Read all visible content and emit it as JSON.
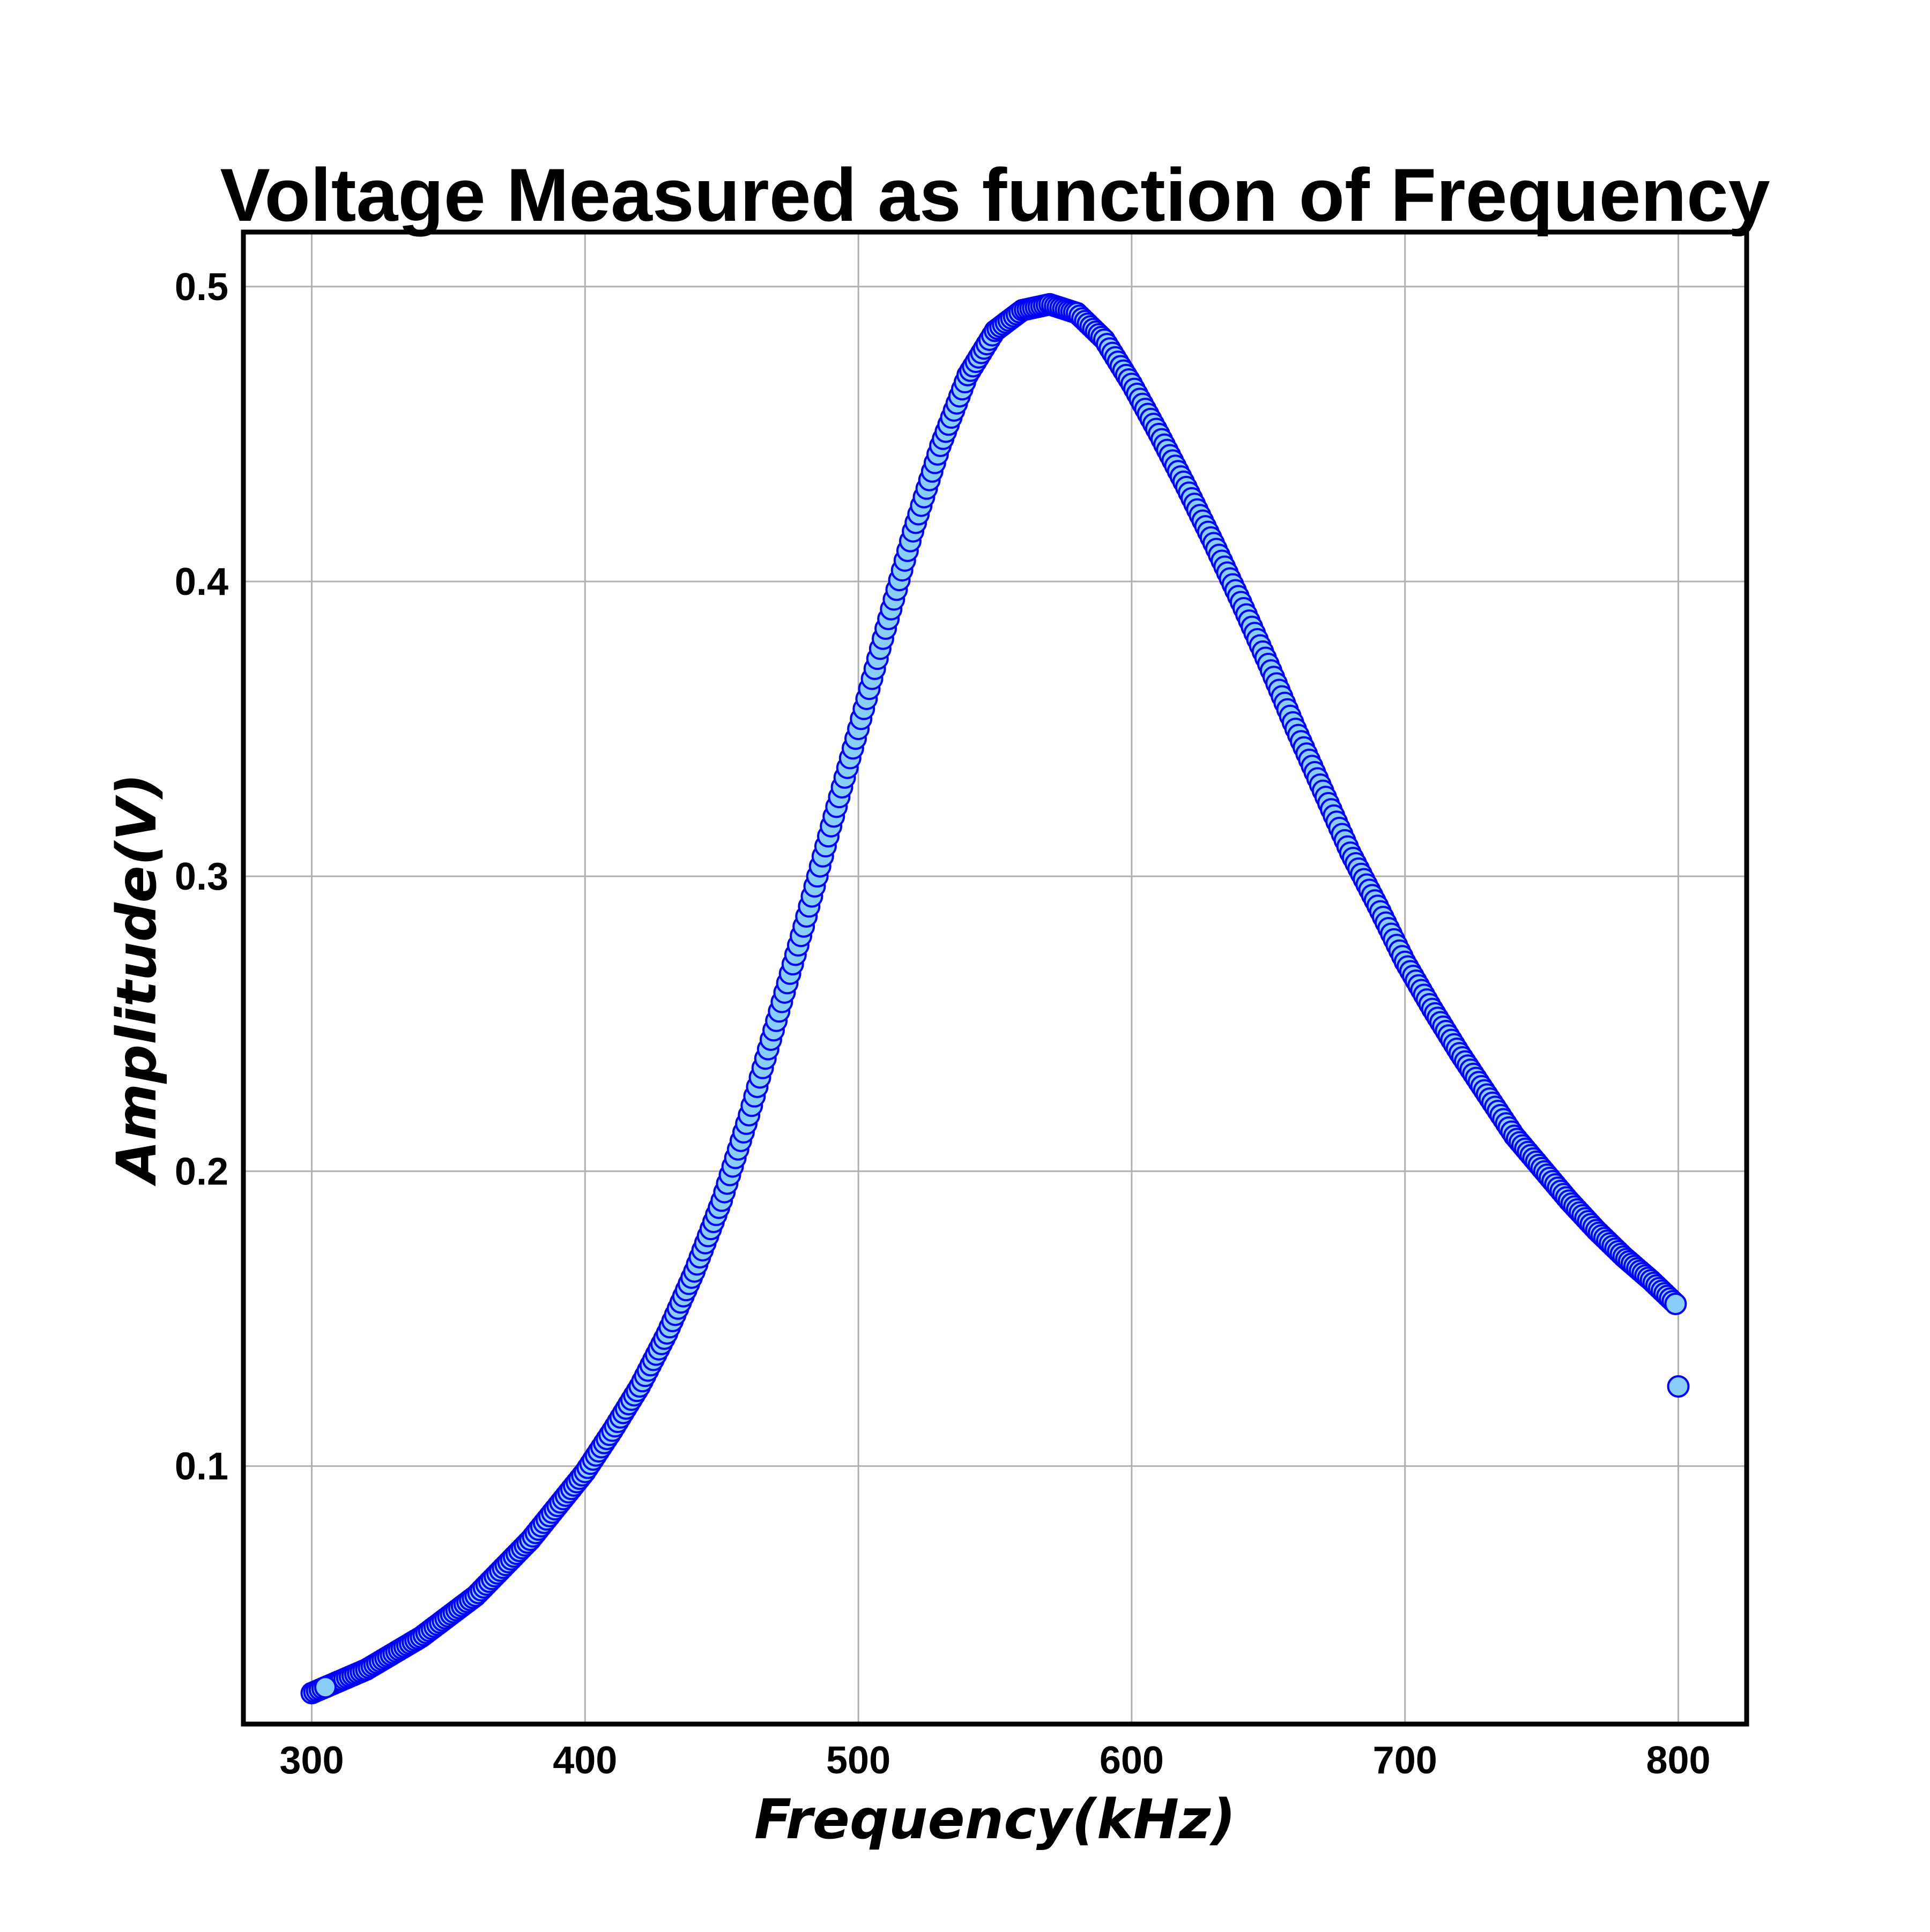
{
  "chart_data": {
    "type": "scatter",
    "title": "Voltage Measured as function of Frequency",
    "xlabel": "Frequency(kHz)",
    "ylabel": "Amplitude(V)",
    "xlim": [
      275,
      825
    ],
    "ylim": [
      0.0125,
      0.5185
    ],
    "xticks": [
      300,
      400,
      500,
      600,
      700,
      800
    ],
    "xtick_labels": [
      "300",
      "400",
      "500",
      "600",
      "700",
      "800"
    ],
    "yticks": [
      0.1,
      0.2,
      0.3,
      0.4,
      0.5
    ],
    "ytick_labels": [
      "0.1",
      "0.2",
      "0.3",
      "0.4",
      "0.5"
    ],
    "grid": true,
    "legend": "none",
    "marker_fill": "#87CEFA",
    "marker_edge": "#0000FF",
    "series": [
      {
        "curve_points": [
          [
            300,
            0.023
          ],
          [
            320,
            0.031
          ],
          [
            340,
            0.042
          ],
          [
            360,
            0.056
          ],
          [
            380,
            0.075
          ],
          [
            400,
            0.098
          ],
          [
            410,
            0.112
          ],
          [
            420,
            0.127
          ],
          [
            430,
            0.145
          ],
          [
            440,
            0.166
          ],
          [
            450,
            0.19
          ],
          [
            460,
            0.219
          ],
          [
            470,
            0.251
          ],
          [
            480,
            0.283
          ],
          [
            490,
            0.317
          ],
          [
            500,
            0.35
          ],
          [
            510,
            0.384
          ],
          [
            520,
            0.417
          ],
          [
            530,
            0.446
          ],
          [
            540,
            0.47
          ],
          [
            550,
            0.485
          ],
          [
            560,
            0.492
          ],
          [
            570,
            0.494
          ],
          [
            580,
            0.491
          ],
          [
            590,
            0.482
          ],
          [
            600,
            0.467
          ],
          [
            610,
            0.45
          ],
          [
            620,
            0.432
          ],
          [
            630,
            0.413
          ],
          [
            640,
            0.393
          ],
          [
            650,
            0.372
          ],
          [
            660,
            0.35
          ],
          [
            670,
            0.329
          ],
          [
            680,
            0.308
          ],
          [
            690,
            0.29
          ],
          [
            700,
            0.271
          ],
          [
            710,
            0.255
          ],
          [
            720,
            0.24
          ],
          [
            730,
            0.226
          ],
          [
            740,
            0.212
          ],
          [
            750,
            0.201
          ],
          [
            760,
            0.19
          ],
          [
            770,
            0.18
          ],
          [
            780,
            0.171
          ],
          [
            790,
            0.163
          ],
          [
            799,
            0.155
          ]
        ],
        "step": 1,
        "extra_points": [
          [
            305,
            0.025
          ],
          [
            800,
            0.127
          ]
        ]
      }
    ]
  }
}
